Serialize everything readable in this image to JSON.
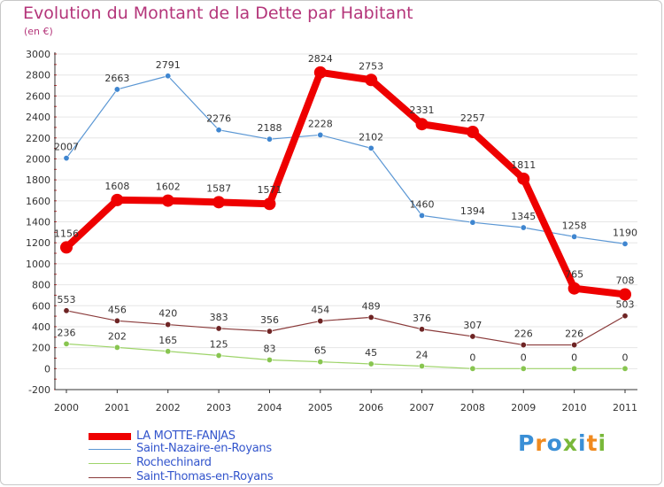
{
  "title": "Evolution du Montant de la Dette par Habitant",
  "subtitle": "(en €)",
  "brand": {
    "text": "Proxiti",
    "letter_colors": [
      "#3a8fd6",
      "#f08a1e",
      "#3a8fd6",
      "#79b83a",
      "#3a8fd6",
      "#f08a1e",
      "#79b83a"
    ]
  },
  "colors": {
    "title": "#b4357a",
    "legend_text": "#3355cc",
    "grid": "#e6e6e6",
    "axis": "#333333"
  },
  "chart_data": {
    "type": "line",
    "title": "Evolution du Montant de la Dette par Habitant",
    "ylabel": "(en €)",
    "xlabel": "",
    "ylim": [
      -200,
      3000
    ],
    "yticks": [
      -200,
      0,
      200,
      400,
      600,
      800,
      1000,
      1200,
      1400,
      1600,
      1800,
      2000,
      2200,
      2400,
      2600,
      2800,
      3000
    ],
    "grid": true,
    "legend_position": "bottom-left",
    "categories": [
      "2000",
      "2001",
      "2002",
      "2003",
      "2004",
      "2005",
      "2006",
      "2007",
      "2008",
      "2009",
      "2010",
      "2011"
    ],
    "series": [
      {
        "name": "Saint-Nazaire-en-Royans",
        "color": "#5b97d4",
        "marker_color": "#3f86d0",
        "values": [
          2007,
          2663,
          2791,
          2276,
          2188,
          2228,
          2102,
          1460,
          1394,
          1345,
          1258,
          1190
        ],
        "labels": [
          "2007",
          "2663",
          "2791",
          "2276",
          "2188",
          "2228",
          "2102",
          "1460",
          "1394",
          "1345",
          "1258",
          "1190"
        ]
      },
      {
        "name": "Rochechinard",
        "color": "#9ed46a",
        "marker_color": "#88c550",
        "values": [
          236,
          202,
          165,
          125,
          83,
          65,
          45,
          24,
          0,
          0,
          0,
          0
        ],
        "labels": [
          "236",
          "202",
          "165",
          "125",
          "83",
          "65",
          "45",
          "24",
          "0",
          "0",
          "0",
          "0"
        ]
      },
      {
        "name": "Saint-Thomas-en-Royans",
        "color": "#8a3a3a",
        "marker_color": "#6e2424",
        "values": [
          553,
          456,
          420,
          383,
          356,
          454,
          489,
          376,
          307,
          226,
          226,
          503
        ],
        "labels": [
          "553",
          "456",
          "420",
          "383",
          "356",
          "454",
          "489",
          "376",
          "307",
          "226",
          "226",
          "503"
        ]
      },
      {
        "name": "LA MOTTE-FANJAS",
        "color": "#ee0000",
        "marker_color": "#ee0000",
        "values": [
          1156,
          1608,
          1602,
          1587,
          1571,
          2824,
          2753,
          2331,
          2257,
          1811,
          765,
          708
        ],
        "labels": [
          "1156",
          "1608",
          "1602",
          "1587",
          "1571",
          "2824",
          "2753",
          "2331",
          "2257",
          "1811",
          "765",
          "708"
        ]
      }
    ],
    "legend": [
      {
        "name": "LA MOTTE-FANJAS",
        "color": "#ee0000",
        "thick": true
      },
      {
        "name": "Saint-Nazaire-en-Royans",
        "color": "#5b97d4",
        "thick": false
      },
      {
        "name": "Rochechinard",
        "color": "#9ed46a",
        "thick": false
      },
      {
        "name": "Saint-Thomas-en-Royans",
        "color": "#8a3a3a",
        "thick": false
      }
    ]
  }
}
